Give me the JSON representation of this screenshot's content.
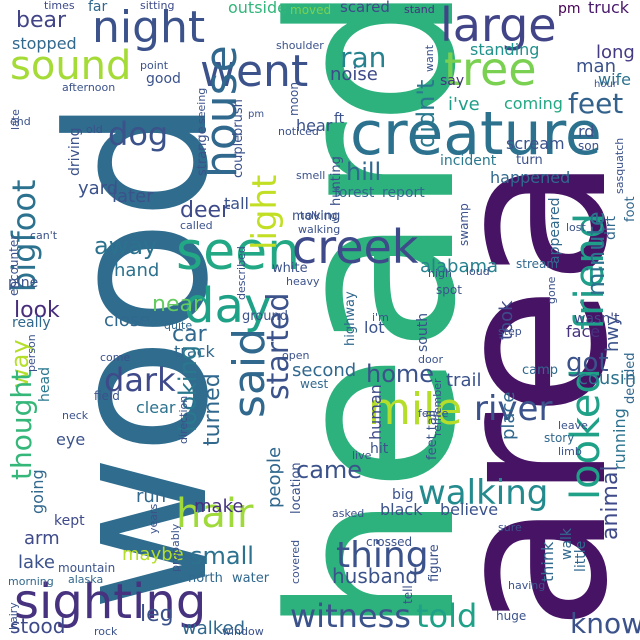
{
  "words": [
    {
      "text": "heard",
      "color": "#2db27d"
    },
    {
      "text": "area",
      "color": "#471365"
    },
    {
      "text": "wood",
      "color": "#2f6c8e"
    },
    {
      "text": "creature",
      "color": "#2c728e"
    },
    {
      "text": "night",
      "color": "#3b528b"
    },
    {
      "text": "sound",
      "color": "#a5db36"
    },
    {
      "text": "large",
      "color": "#414487"
    },
    {
      "text": "tree",
      "color": "#7ad151"
    },
    {
      "text": "went",
      "color": "#3b528b"
    },
    {
      "text": "house",
      "color": "#31688e"
    },
    {
      "text": "said",
      "color": "#31688e"
    },
    {
      "text": "seen",
      "color": "#22a884"
    },
    {
      "text": "creek",
      "color": "#3e4a89"
    },
    {
      "text": "day",
      "color": "#1fa187"
    },
    {
      "text": "sighting",
      "color": "#46327e"
    },
    {
      "text": "hair",
      "color": "#9fda3a"
    },
    {
      "text": "friend",
      "color": "#1f9e89"
    },
    {
      "text": "mile",
      "color": "#b5de2b"
    },
    {
      "text": "looked",
      "color": "#1fa187"
    },
    {
      "text": "light",
      "color": "#c2df23"
    },
    {
      "text": "bigfoot",
      "color": "#2c728e"
    },
    {
      "text": "dog",
      "color": "#3b528b"
    },
    {
      "text": "feet",
      "color": "#33638d"
    },
    {
      "text": "walking",
      "color": "#238a8d"
    },
    {
      "text": "thing",
      "color": "#3b528b"
    },
    {
      "text": "witness",
      "color": "#3b528b"
    },
    {
      "text": "told",
      "color": "#1fa187"
    },
    {
      "text": "dark",
      "color": "#3e4a89"
    },
    {
      "text": "house",
      "color": "#31688e"
    },
    {
      "text": "river",
      "color": "#3b528b"
    },
    {
      "text": "bear",
      "color": "#414487"
    },
    {
      "text": "far",
      "color": "#31688e"
    },
    {
      "text": "sitting",
      "color": "#3e4a89"
    },
    {
      "text": "outside",
      "color": "#32b67a"
    },
    {
      "text": "moved",
      "color": "#7ad151"
    },
    {
      "text": "scared",
      "color": "#3e4a89"
    },
    {
      "text": "stand",
      "color": "#46327e"
    },
    {
      "text": "pm",
      "color": "#440154"
    },
    {
      "text": "truck",
      "color": "#48186a"
    },
    {
      "text": "stopped",
      "color": "#31688e"
    },
    {
      "text": "times",
      "color": "#3e4a89"
    },
    {
      "text": "ran",
      "color": "#26828e"
    },
    {
      "text": "noise",
      "color": "#3e4a89"
    },
    {
      "text": "didn't",
      "color": "#2a788e"
    },
    {
      "text": "standing",
      "color": "#20928c"
    },
    {
      "text": "long",
      "color": "#443983"
    },
    {
      "text": "man",
      "color": "#3b528b"
    },
    {
      "text": "wife",
      "color": "#2c728e"
    },
    {
      "text": "i've",
      "color": "#1f9e89"
    },
    {
      "text": "coming",
      "color": "#22a884"
    },
    {
      "text": "say",
      "color": "#463480"
    },
    {
      "text": "hill",
      "color": "#31688e"
    },
    {
      "text": "deer",
      "color": "#3e4a89"
    },
    {
      "text": "later",
      "color": "#3b528b"
    },
    {
      "text": "yard",
      "color": "#3b528b"
    },
    {
      "text": "away",
      "color": "#2c728e"
    },
    {
      "text": "hand",
      "color": "#2c728e"
    },
    {
      "text": "minute",
      "color": "#2c728e"
    },
    {
      "text": "alabama",
      "color": "#26828e"
    },
    {
      "text": "took",
      "color": "#3e4a89"
    },
    {
      "text": "near",
      "color": "#63cb5f"
    },
    {
      "text": "look",
      "color": "#472d7b"
    },
    {
      "text": "car",
      "color": "#31688e"
    },
    {
      "text": "close",
      "color": "#31688e"
    },
    {
      "text": "track",
      "color": "#31688e"
    },
    {
      "text": "started",
      "color": "#3b528b"
    },
    {
      "text": "way",
      "color": "#b5de2b"
    },
    {
      "text": "thought",
      "color": "#35b779"
    },
    {
      "text": "looking",
      "color": "#2a788e"
    },
    {
      "text": "turned",
      "color": "#31688e"
    },
    {
      "text": "home",
      "color": "#3b528b"
    },
    {
      "text": "got",
      "color": "#3b528b"
    },
    {
      "text": "animal",
      "color": "#3e4a89"
    },
    {
      "text": "came",
      "color": "#3b528b"
    },
    {
      "text": "people",
      "color": "#31688e"
    },
    {
      "text": "small",
      "color": "#2c728e"
    },
    {
      "text": "make",
      "color": "#46327e"
    },
    {
      "text": "run",
      "color": "#31688e"
    },
    {
      "text": "know",
      "color": "#3b528b"
    },
    {
      "text": "husband",
      "color": "#3b528b"
    },
    {
      "text": "lake",
      "color": "#3b528b"
    },
    {
      "text": "arm",
      "color": "#3e4a89"
    },
    {
      "text": "stood",
      "color": "#3e4a89"
    },
    {
      "text": "leg",
      "color": "#3b528b"
    },
    {
      "text": "walked",
      "color": "#31688e"
    },
    {
      "text": "maybe",
      "color": "#b5de2b"
    },
    {
      "text": "clear",
      "color": "#2c728e"
    },
    {
      "text": "going",
      "color": "#31688e"
    },
    {
      "text": "eye",
      "color": "#3b528b"
    },
    {
      "text": "kept",
      "color": "#3e4a89"
    },
    {
      "text": "head",
      "color": "#2a788e"
    },
    {
      "text": "second",
      "color": "#31688e"
    },
    {
      "text": "south",
      "color": "#3b528b"
    },
    {
      "text": "human",
      "color": "#3e4a89"
    },
    {
      "text": "trail",
      "color": "#3b528b"
    },
    {
      "text": "cousin",
      "color": "#2c728e"
    },
    {
      "text": "face",
      "color": "#46327e"
    },
    {
      "text": "hwy",
      "color": "#3b528b"
    },
    {
      "text": "wasn't",
      "color": "#3e4a89"
    },
    {
      "text": "place",
      "color": "#31688e"
    },
    {
      "text": "running",
      "color": "#2c728e"
    },
    {
      "text": "decided",
      "color": "#31688e"
    },
    {
      "text": "think",
      "color": "#31688e"
    },
    {
      "text": "walk",
      "color": "#31688e"
    },
    {
      "text": "little",
      "color": "#31688e"
    },
    {
      "text": "big",
      "color": "#3b528b"
    },
    {
      "text": "believe",
      "color": "#3b528b"
    },
    {
      "text": "black",
      "color": "#3b528b"
    },
    {
      "text": "hit",
      "color": "#3b528b"
    },
    {
      "text": "story",
      "color": "#31688e"
    },
    {
      "text": "report",
      "color": "#31688e"
    },
    {
      "text": "forest",
      "color": "#31688e"
    },
    {
      "text": "incident",
      "color": "#2a788e"
    },
    {
      "text": "turn",
      "color": "#3b528b"
    },
    {
      "text": "happened",
      "color": "#31688e"
    },
    {
      "text": "scream",
      "color": "#3b528b"
    },
    {
      "text": "appeared",
      "color": "#31688e"
    },
    {
      "text": "dirt",
      "color": "#31688e"
    },
    {
      "text": "foot",
      "color": "#31688e"
    },
    {
      "text": "son",
      "color": "#3b528b"
    },
    {
      "text": "rd",
      "color": "#3b528b"
    },
    {
      "text": "good",
      "color": "#3b528b"
    },
    {
      "text": "point",
      "color": "#3b528b"
    },
    {
      "text": "driving",
      "color": "#3b528b"
    },
    {
      "text": "encounter",
      "color": "#3b528b"
    },
    {
      "text": "pine",
      "color": "#3b528b"
    },
    {
      "text": "really",
      "color": "#31688e"
    },
    {
      "text": "person",
      "color": "#3b528b"
    },
    {
      "text": "field",
      "color": "#3b528b"
    },
    {
      "text": "mountain",
      "color": "#3b528b"
    },
    {
      "text": "morning",
      "color": "#31688e"
    },
    {
      "text": "hairy",
      "color": "#3b528b"
    },
    {
      "text": "rock",
      "color": "#3b528b"
    },
    {
      "text": "alaska",
      "color": "#31688e"
    },
    {
      "text": "north",
      "color": "#31688e"
    },
    {
      "text": "water",
      "color": "#31688e"
    },
    {
      "text": "covered",
      "color": "#3b528b"
    },
    {
      "text": "crossed",
      "color": "#3b528b"
    },
    {
      "text": "tall",
      "color": "#3b528b"
    },
    {
      "text": "couple",
      "color": "#3b528b"
    },
    {
      "text": "strange",
      "color": "#3b528b"
    },
    {
      "text": "brush",
      "color": "#3b528b"
    },
    {
      "text": "moving",
      "color": "#3b528b"
    },
    {
      "text": "walking",
      "color": "#3b528b"
    },
    {
      "text": "hunting",
      "color": "#3b528b"
    },
    {
      "text": "smell",
      "color": "#3b528b"
    },
    {
      "text": "swamp",
      "color": "#3b528b"
    },
    {
      "text": "stream",
      "color": "#31688e"
    },
    {
      "text": "gone",
      "color": "#3b528b"
    },
    {
      "text": "step",
      "color": "#3b528b"
    },
    {
      "text": "camp",
      "color": "#31688e"
    },
    {
      "text": "door",
      "color": "#3b528b"
    },
    {
      "text": "west",
      "color": "#31688e"
    },
    {
      "text": "open",
      "color": "#3b528b"
    },
    {
      "text": "ground",
      "color": "#3b528b"
    },
    {
      "text": "quite",
      "color": "#31688e"
    },
    {
      "text": "come",
      "color": "#3b528b"
    },
    {
      "text": "direction",
      "color": "#3b528b"
    },
    {
      "text": "highway",
      "color": "#31688e"
    },
    {
      "text": "lot",
      "color": "#3b528b"
    },
    {
      "text": "white",
      "color": "#3b528b"
    },
    {
      "text": "heavy",
      "color": "#3b528b"
    },
    {
      "text": "spot",
      "color": "#3b528b"
    },
    {
      "text": "high",
      "color": "#3b528b"
    },
    {
      "text": "loud",
      "color": "#3b528b"
    },
    {
      "text": "fence",
      "color": "#3b528b"
    },
    {
      "text": "remember",
      "color": "#3b528b"
    },
    {
      "text": "leave",
      "color": "#3b528b"
    },
    {
      "text": "limb",
      "color": "#3b528b"
    },
    {
      "text": "sure",
      "color": "#3b528b"
    },
    {
      "text": "figure",
      "color": "#3b528b"
    },
    {
      "text": "tell",
      "color": "#3b528b"
    },
    {
      "text": "having",
      "color": "#3b528b"
    },
    {
      "text": "huge",
      "color": "#3b528b"
    },
    {
      "text": "window",
      "color": "#3b528b"
    },
    {
      "text": "asked",
      "color": "#3b528b"
    },
    {
      "text": "location",
      "color": "#3b528b"
    },
    {
      "text": "live",
      "color": "#3b528b"
    },
    {
      "text": "feet tall",
      "color": "#3b528b"
    },
    {
      "text": "probably",
      "color": "#3b528b"
    },
    {
      "text": "years",
      "color": "#3b528b"
    },
    {
      "text": "neck",
      "color": "#3b528b"
    },
    {
      "text": "called",
      "color": "#3b528b"
    },
    {
      "text": "described",
      "color": "#3b528b"
    },
    {
      "text": "shoulder",
      "color": "#3b528b"
    },
    {
      "text": "noticed",
      "color": "#3b528b"
    },
    {
      "text": "moon",
      "color": "#3b528b"
    },
    {
      "text": "ft",
      "color": "#3b528b"
    },
    {
      "text": "seeing",
      "color": "#3b528b"
    },
    {
      "text": "afternoon",
      "color": "#3b528b"
    },
    {
      "text": "end",
      "color": "#3b528b"
    },
    {
      "text": "old",
      "color": "#3b528b"
    },
    {
      "text": "late",
      "color": "#3b528b"
    },
    {
      "text": "can't",
      "color": "#3b528b"
    },
    {
      "text": "want",
      "color": "#3b528b"
    },
    {
      "text": "hour",
      "color": "#3b528b"
    },
    {
      "text": "sasquatch",
      "color": "#3b528b"
    },
    {
      "text": "talking",
      "color": "#3b528b"
    },
    {
      "text": "i'm",
      "color": "#3b528b"
    },
    {
      "text": "hear",
      "color": "#3b528b"
    },
    {
      "text": "lost",
      "color": "#3b528b"
    },
    {
      "text": "pm",
      "color": "#3b528b"
    }
  ]
}
